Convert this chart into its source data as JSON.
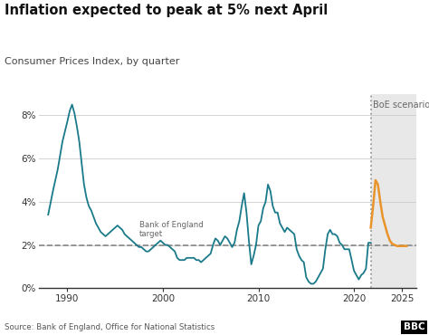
{
  "title": "Inflation expected to peak at 5% next April",
  "subtitle": "Consumer Prices Index, by quarter",
  "source": "Source: Bank of England, Office for National Statistics",
  "boe_label": "BoE scenario",
  "boe_target_label": "Bank of England\ntarget",
  "target_rate": 2.0,
  "boe_scenario_start": 2021.75,
  "boe_scenario_end": 2026.5,
  "dotted_line_x": 2021.75,
  "ylim": [
    0,
    9.0
  ],
  "yticks": [
    0,
    2,
    4,
    6,
    8
  ],
  "ytick_labels": [
    "0%",
    "2%",
    "4%",
    "6%",
    "8%"
  ],
  "xlim": [
    1987.0,
    2026.5
  ],
  "xticks": [
    1990,
    2000,
    2010,
    2020,
    2025
  ],
  "xtick_labels": [
    "1990",
    "2000",
    "2010",
    "2020",
    "2025"
  ],
  "main_color": "#1a7a8a",
  "forecast_color": "#e8942a",
  "target_line_color": "#888888",
  "background_color": "#ffffff",
  "forecast_bg_color": "#e8e8e8",
  "historical_x": [
    1988.0,
    1988.5,
    1989.0,
    1989.5,
    1990.0,
    1990.25,
    1990.5,
    1990.75,
    1991.0,
    1991.25,
    1991.5,
    1991.75,
    1992.0,
    1992.25,
    1992.5,
    1992.75,
    1993.0,
    1993.25,
    1993.5,
    1993.75,
    1994.0,
    1994.25,
    1994.5,
    1994.75,
    1995.0,
    1995.25,
    1995.5,
    1995.75,
    1996.0,
    1996.25,
    1996.5,
    1996.75,
    1997.0,
    1997.25,
    1997.5,
    1997.75,
    1998.0,
    1998.25,
    1998.5,
    1998.75,
    1999.0,
    1999.25,
    1999.5,
    1999.75,
    2000.0,
    2000.25,
    2000.5,
    2000.75,
    2001.0,
    2001.25,
    2001.5,
    2001.75,
    2002.0,
    2002.25,
    2002.5,
    2002.75,
    2003.0,
    2003.25,
    2003.5,
    2003.75,
    2004.0,
    2004.25,
    2004.5,
    2004.75,
    2005.0,
    2005.25,
    2005.5,
    2005.75,
    2006.0,
    2006.25,
    2006.5,
    2006.75,
    2007.0,
    2007.25,
    2007.5,
    2007.75,
    2008.0,
    2008.25,
    2008.5,
    2008.75,
    2009.0,
    2009.25,
    2009.5,
    2009.75,
    2010.0,
    2010.25,
    2010.5,
    2010.75,
    2011.0,
    2011.25,
    2011.5,
    2011.75,
    2012.0,
    2012.25,
    2012.5,
    2012.75,
    2013.0,
    2013.25,
    2013.5,
    2013.75,
    2014.0,
    2014.25,
    2014.5,
    2014.75,
    2015.0,
    2015.25,
    2015.5,
    2015.75,
    2016.0,
    2016.25,
    2016.5,
    2016.75,
    2017.0,
    2017.25,
    2017.5,
    2017.75,
    2018.0,
    2018.25,
    2018.5,
    2018.75,
    2019.0,
    2019.25,
    2019.5,
    2019.75,
    2020.0,
    2020.25,
    2020.5,
    2020.75,
    2021.0,
    2021.25,
    2021.5,
    2021.75
  ],
  "historical_y": [
    3.4,
    4.5,
    5.5,
    6.8,
    7.7,
    8.2,
    8.5,
    8.1,
    7.5,
    6.8,
    5.8,
    4.8,
    4.2,
    3.8,
    3.6,
    3.3,
    3.0,
    2.8,
    2.6,
    2.5,
    2.4,
    2.5,
    2.6,
    2.7,
    2.8,
    2.9,
    2.8,
    2.7,
    2.5,
    2.4,
    2.3,
    2.2,
    2.1,
    2.0,
    1.9,
    1.9,
    1.8,
    1.7,
    1.7,
    1.8,
    1.9,
    2.0,
    2.1,
    2.2,
    2.1,
    2.0,
    2.0,
    1.9,
    1.8,
    1.7,
    1.4,
    1.3,
    1.3,
    1.3,
    1.4,
    1.4,
    1.4,
    1.4,
    1.3,
    1.3,
    1.2,
    1.3,
    1.4,
    1.5,
    1.6,
    2.0,
    2.3,
    2.2,
    2.0,
    2.2,
    2.4,
    2.3,
    2.1,
    1.9,
    2.1,
    2.7,
    3.1,
    3.8,
    4.4,
    3.5,
    2.2,
    1.1,
    1.5,
    2.0,
    2.9,
    3.1,
    3.7,
    4.0,
    4.8,
    4.5,
    3.8,
    3.5,
    3.5,
    3.0,
    2.8,
    2.6,
    2.8,
    2.7,
    2.6,
    2.5,
    1.8,
    1.5,
    1.3,
    1.2,
    0.5,
    0.3,
    0.2,
    0.2,
    0.3,
    0.5,
    0.7,
    0.9,
    1.8,
    2.5,
    2.7,
    2.5,
    2.5,
    2.4,
    2.1,
    2.0,
    1.8,
    1.8,
    1.8,
    1.3,
    0.8,
    0.6,
    0.4,
    0.6,
    0.7,
    0.9,
    2.1,
    2.1
  ],
  "forecast_x": [
    2021.75,
    2022.0,
    2022.25,
    2022.5,
    2022.75,
    2023.0,
    2023.25,
    2023.5,
    2023.75,
    2024.0,
    2024.25,
    2024.5,
    2024.75,
    2025.0,
    2025.5
  ],
  "forecast_y": [
    2.8,
    3.8,
    5.0,
    4.8,
    4.0,
    3.3,
    2.9,
    2.5,
    2.2,
    2.05,
    2.0,
    1.95,
    1.95,
    1.95,
    1.95
  ]
}
